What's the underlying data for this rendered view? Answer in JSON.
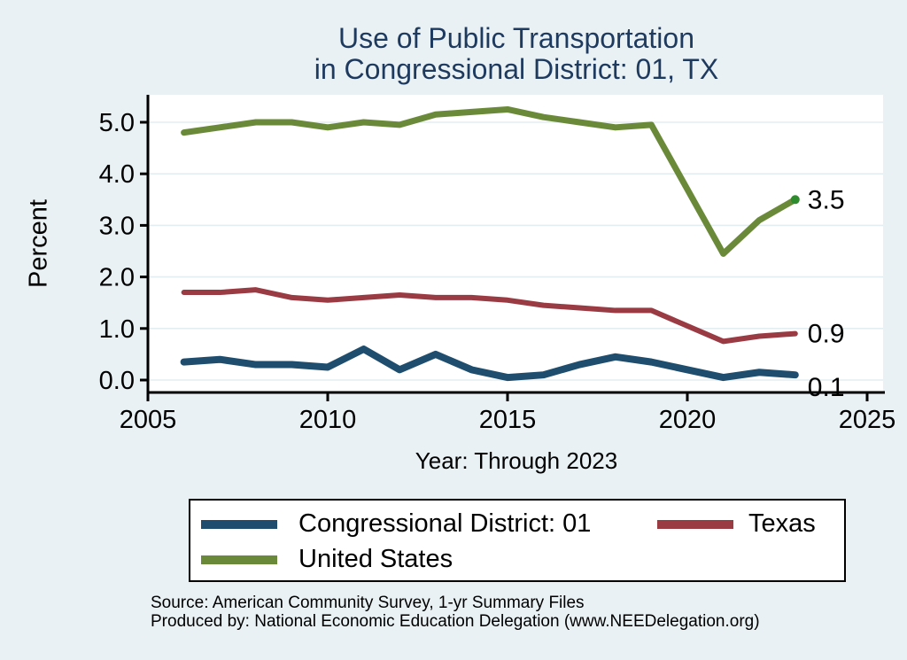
{
  "title": {
    "line1": "Use of Public Transportation",
    "line2": "in Congressional District: 01, TX"
  },
  "axes": {
    "y_label": "Percent",
    "x_caption": "Year: Through 2023"
  },
  "legend": {
    "items": [
      {
        "label": "Congressional District: 01",
        "color": "#1e4d6e"
      },
      {
        "label": "Texas",
        "color": "#9a3b44"
      },
      {
        "label": "United States",
        "color": "#6a8a3a"
      }
    ]
  },
  "footer": {
    "source": "Source: American Community Survey, 1-yr Summary Files",
    "produced": "Produced by: National Economic Education Delegation (www.NEEDelegation.org)"
  },
  "colors": {
    "background": "#e9f1f4",
    "plot_background": "#ffffff",
    "gridline": "#e4edf2",
    "axis": "#000000",
    "title": "#1e3a5f",
    "cd01_blue": "#1e4d6e",
    "texas_red": "#9a3b44",
    "us_green": "#6a8a3a",
    "us_end_marker_green": "#2e8b2e"
  },
  "chart_data": {
    "type": "line",
    "title": "Use of Public Transportation in Congressional District: 01, TX",
    "xlabel": "Year: Through 2023",
    "ylabel": "Percent",
    "x": [
      2006,
      2007,
      2008,
      2009,
      2010,
      2011,
      2012,
      2013,
      2014,
      2015,
      2016,
      2017,
      2018,
      2019,
      2021,
      2022,
      2023
    ],
    "series": [
      {
        "name": "Congressional District: 01",
        "color": "#1e4d6e",
        "line_width": 8,
        "values": [
          0.35,
          0.4,
          0.3,
          0.3,
          0.25,
          0.6,
          0.2,
          0.5,
          0.2,
          0.05,
          0.1,
          0.3,
          0.45,
          0.35,
          0.05,
          0.15,
          0.1
        ],
        "end_label": "0.1"
      },
      {
        "name": "Texas",
        "color": "#9a3b44",
        "line_width": 6,
        "values": [
          1.7,
          1.7,
          1.75,
          1.6,
          1.55,
          1.6,
          1.65,
          1.6,
          1.6,
          1.55,
          1.45,
          1.4,
          1.35,
          1.35,
          0.75,
          0.85,
          0.9
        ],
        "end_label": "0.9"
      },
      {
        "name": "United States",
        "color": "#6a8a3a",
        "line_width": 7,
        "values": [
          4.8,
          4.9,
          5.0,
          5.0,
          4.9,
          5.0,
          4.95,
          5.15,
          5.2,
          5.25,
          5.1,
          5.0,
          4.9,
          4.95,
          2.45,
          3.1,
          3.5
        ],
        "end_label": "3.5",
        "end_marker": true,
        "end_marker_color": "#2e8b2e"
      }
    ],
    "xticks": [
      2005,
      2010,
      2015,
      2020,
      2025
    ],
    "yticks": [
      0,
      1,
      2,
      3,
      4,
      5
    ],
    "xlim": [
      2005,
      2025.5
    ],
    "ylim": [
      -0.25,
      5.8
    ],
    "grid": "horizontal",
    "legend_position": "bottom"
  }
}
